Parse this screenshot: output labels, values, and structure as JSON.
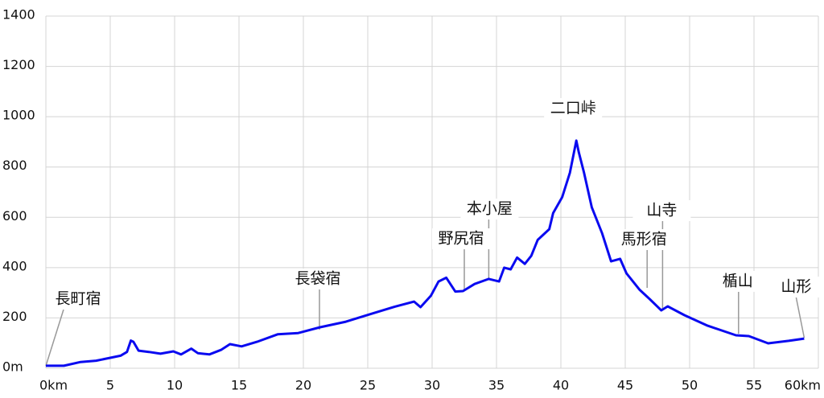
{
  "chart_data": {
    "type": "line",
    "x": [
      0,
      1.4,
      2.7,
      3.9,
      5.8,
      6.3,
      6.6,
      6.8,
      7.2,
      8,
      8.9,
      9.9,
      10.5,
      11.3,
      11.8,
      12.7,
      13.6,
      14.3,
      15.2,
      16.4,
      18,
      19.6,
      21.3,
      23.3,
      25.2,
      27.1,
      28.6,
      29.1,
      29.9,
      30.5,
      31.1,
      31.8,
      32.4,
      33.3,
      34.4,
      35.2,
      35.6,
      36.1,
      36.6,
      37.2,
      37.7,
      38.2,
      39.1,
      39.4,
      40.1,
      40.7,
      41.2,
      41.4,
      41.8,
      42.4,
      43.2,
      43.9,
      44.6,
      45.1,
      46.1,
      46.9,
      47.8,
      48.3,
      49.6,
      51.4,
      53.6,
      54.6,
      56.1,
      57.7,
      58.9
    ],
    "series": [
      {
        "color": "#0a0af0",
        "values": [
          10,
          10,
          25,
          30,
          50,
          65,
          110,
          105,
          70,
          65,
          58,
          67,
          55,
          78,
          60,
          55,
          73,
          96,
          87,
          105,
          135,
          140,
          163,
          185,
          215,
          245,
          265,
          243,
          288,
          345,
          360,
          305,
          307,
          335,
          355,
          345,
          400,
          393,
          440,
          415,
          447,
          510,
          553,
          617,
          680,
          777,
          905,
          857,
          777,
          640,
          537,
          425,
          435,
          377,
          313,
          275,
          230,
          246,
          211,
          169,
          131,
          128,
          99,
          109,
          118
        ]
      }
    ],
    "xlim": [
      0,
      60
    ],
    "ylim": [
      0,
      1400
    ],
    "xticks": [
      {
        "value": 0,
        "label": "0km"
      },
      5,
      10,
      15,
      20,
      25,
      30,
      35,
      40,
      45,
      50,
      55,
      {
        "value": 60,
        "label": "60km"
      }
    ],
    "yticks": [
      {
        "value": 0,
        "label": "0m"
      },
      200,
      400,
      600,
      800,
      1000,
      1200,
      1400
    ],
    "grid": true,
    "annotations": [
      {
        "text": "長町宿",
        "x": 0
      },
      {
        "text": "長袋宿",
        "x": 21.25
      },
      {
        "text": "野尻宿",
        "x": 32.5
      },
      {
        "text": "本小屋",
        "x": 34.4
      },
      {
        "text": "二口峠",
        "x": 41.2
      },
      {
        "text": "馬形宿",
        "x": 46.7
      },
      {
        "text": "山寺",
        "x": 47.9
      },
      {
        "text": "楯山",
        "x": 53.8
      },
      {
        "text": "山形",
        "x": 58.9
      }
    ]
  }
}
